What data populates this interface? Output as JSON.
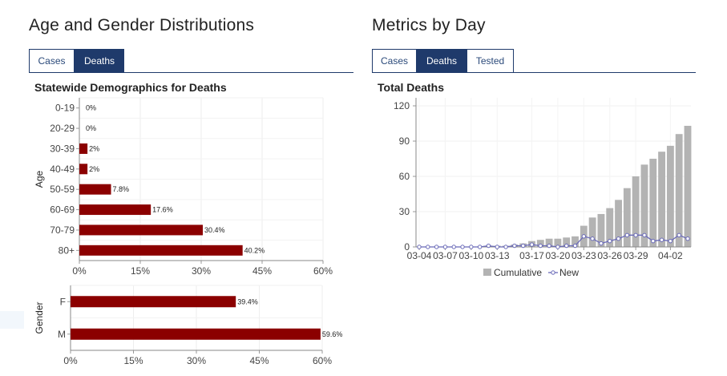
{
  "left_panel": {
    "title": "Age and Gender Distributions",
    "tabs": [
      {
        "label": "Cases",
        "active": false
      },
      {
        "label": "Deaths",
        "active": true
      }
    ],
    "chart_title": "Statewide Demographics for Deaths"
  },
  "right_panel": {
    "title": "Metrics by Day",
    "tabs": [
      {
        "label": "Cases",
        "active": false
      },
      {
        "label": "Deaths",
        "active": true
      },
      {
        "label": "Tested",
        "active": false
      }
    ],
    "chart_title": "Total Deaths"
  },
  "colors": {
    "bar_dark_red": "#8b0000",
    "bar_gray": "#b3b3b3",
    "line_blue": "#6a6ab8",
    "tab_navy": "#1f3a6b"
  },
  "chart_data": [
    {
      "id": "age",
      "type": "bar",
      "orientation": "horizontal",
      "ylabel": "Age",
      "categories": [
        "0-19",
        "20-29",
        "30-39",
        "40-49",
        "50-59",
        "60-69",
        "70-79",
        "80+"
      ],
      "values": [
        0,
        0,
        2,
        2,
        7.8,
        17.6,
        30.4,
        40.2
      ],
      "data_labels": [
        "0%",
        "0%",
        "2%",
        "2%",
        "7.8%",
        "17.6%",
        "30.4%",
        "40.2%"
      ],
      "xlim": [
        0,
        60
      ],
      "x_ticks": [
        "0%",
        "15%",
        "30%",
        "45%",
        "60%"
      ],
      "grid": true
    },
    {
      "id": "gender",
      "type": "bar",
      "orientation": "horizontal",
      "ylabel": "Gender",
      "categories": [
        "F",
        "M"
      ],
      "values": [
        39.4,
        59.6
      ],
      "data_labels": [
        "39.4%",
        "59.6%"
      ],
      "xlim": [
        0,
        60
      ],
      "x_ticks": [
        "0%",
        "15%",
        "30%",
        "45%",
        "60%"
      ],
      "grid": true
    },
    {
      "id": "daily",
      "type": "bar",
      "x_tick_labels": [
        "03-04",
        "03-07",
        "03-10",
        "03-13",
        "03-17",
        "03-20",
        "03-23",
        "03-26",
        "03-29",
        "04-02"
      ],
      "y_ticks": [
        "0",
        "30",
        "60",
        "90",
        "120"
      ],
      "ylim": [
        0,
        120
      ],
      "grid": true,
      "legend_position": "bottom",
      "series": [
        {
          "name": "Cumulative",
          "type": "bar",
          "values": [
            0,
            0,
            0,
            0,
            0,
            0,
            0,
            0,
            1,
            1,
            1,
            2,
            3,
            5,
            6,
            7,
            7,
            8,
            9,
            18,
            25,
            28,
            33,
            40,
            50,
            60,
            70,
            75,
            81,
            86,
            96,
            103
          ]
        },
        {
          "name": "New",
          "type": "line",
          "values": [
            0,
            0,
            0,
            0,
            0,
            0,
            0,
            0,
            1,
            0,
            0,
            1,
            1,
            2,
            1,
            1,
            0,
            1,
            1,
            9,
            7,
            3,
            5,
            7,
            10,
            10,
            10,
            5,
            6,
            5,
            10,
            7
          ]
        }
      ]
    }
  ]
}
